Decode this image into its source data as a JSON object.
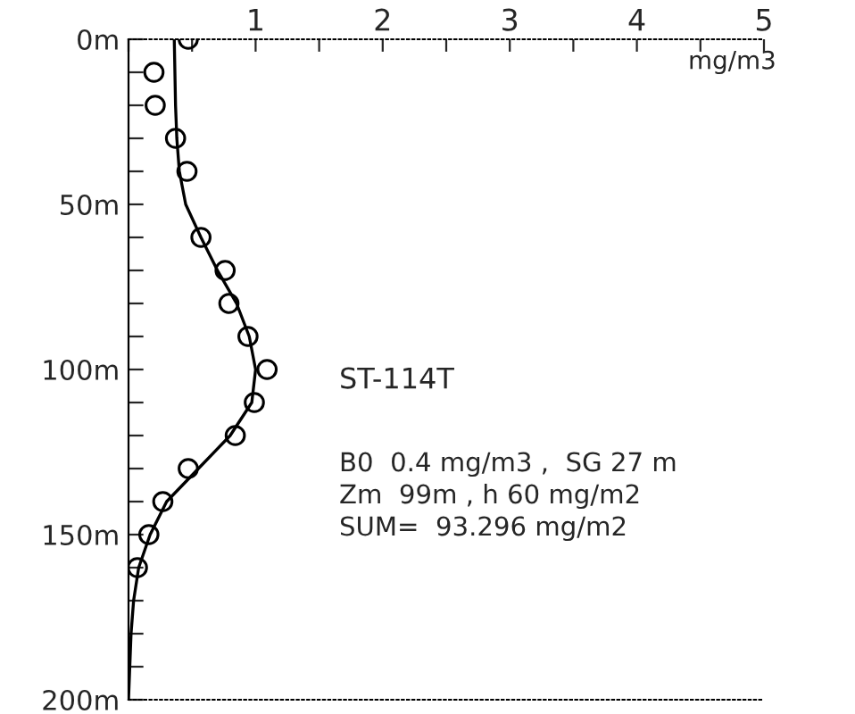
{
  "chart_data": {
    "type": "line",
    "xlabel": "mg/m3",
    "xlim": [
      0,
      5
    ],
    "xticks": [
      {
        "value": 0,
        "label": null
      },
      {
        "value": 0.5,
        "label": null
      },
      1,
      {
        "value": 1.5,
        "label": null
      },
      2,
      {
        "value": 2.5,
        "label": null
      },
      3,
      {
        "value": 3.5,
        "label": null
      },
      4,
      {
        "value": 4.5,
        "label": null
      },
      5
    ],
    "ylim": [
      200,
      0
    ],
    "yticks": [
      {
        "value": 0,
        "label": "0m"
      },
      {
        "value": 10,
        "label": null
      },
      {
        "value": 20,
        "label": null
      },
      {
        "value": 30,
        "label": null
      },
      {
        "value": 40,
        "label": null
      },
      {
        "value": 50,
        "label": "50m"
      },
      {
        "value": 60,
        "label": null
      },
      {
        "value": 70,
        "label": null
      },
      {
        "value": 80,
        "label": null
      },
      {
        "value": 90,
        "label": null
      },
      {
        "value": 100,
        "label": "100m"
      },
      {
        "value": 110,
        "label": null
      },
      {
        "value": 120,
        "label": null
      },
      {
        "value": 130,
        "label": null
      },
      {
        "value": 140,
        "label": null
      },
      {
        "value": 150,
        "label": "150m"
      },
      {
        "value": 160,
        "label": null
      },
      {
        "value": 170,
        "label": null
      },
      {
        "value": 180,
        "label": null
      },
      {
        "value": 190,
        "label": null
      },
      {
        "value": 200,
        "label": "200m"
      }
    ],
    "grid": false,
    "legend": false,
    "series": [
      {
        "type": "scatter",
        "marker": "circle",
        "color": "#000000",
        "x": [
          0.47,
          0.2,
          0.21,
          0.37,
          0.46,
          0.57,
          0.76,
          0.79,
          0.94,
          1.09,
          0.99,
          0.84,
          0.47,
          0.27,
          0.16,
          0.07
        ],
        "values": [
          0,
          10,
          20,
          30,
          40,
          60,
          70,
          80,
          90,
          100,
          110,
          120,
          130,
          140,
          150,
          160
        ]
      },
      {
        "marker": "none",
        "line_style": "solid",
        "color": "#000000",
        "x": [
          0.36,
          0.37,
          0.38,
          0.4,
          0.45,
          0.57,
          0.7,
          0.85,
          0.95,
          1.0,
          0.97,
          0.8,
          0.55,
          0.3,
          0.17,
          0.08,
          0.04,
          0.02,
          0.0
        ],
        "values": [
          0,
          20,
          30,
          40,
          50,
          60,
          70,
          80,
          90,
          100,
          110,
          120,
          130,
          140,
          150,
          160,
          170,
          180,
          200
        ]
      }
    ],
    "annotations": [
      "ST-114T",
      "B0  0.4 mg/m3 ,  SG 27 m",
      "Zm  99m , h 60 mg/m2",
      "SUM=  93.296 mg/m2"
    ]
  }
}
